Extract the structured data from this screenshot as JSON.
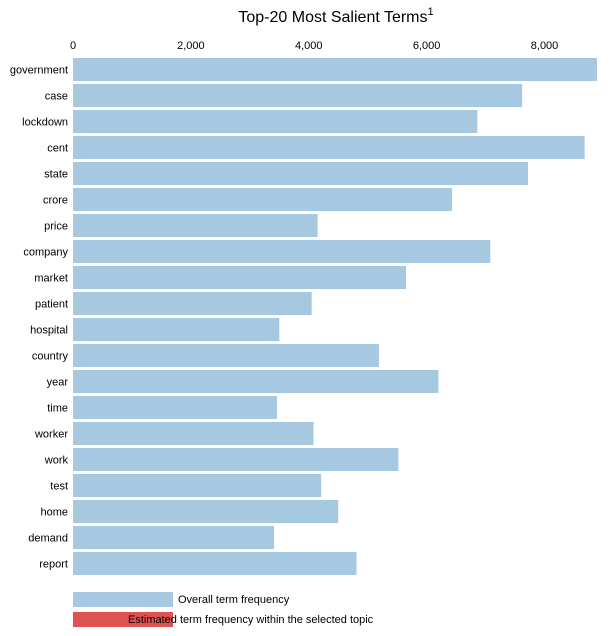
{
  "chart_data": {
    "type": "bar",
    "orientation": "horizontal",
    "title": "Top-20 Most Salient Terms",
    "title_superscript": "1",
    "categories": [
      "government",
      "case",
      "lockdown",
      "cent",
      "state",
      "crore",
      "price",
      "company",
      "market",
      "patient",
      "hospital",
      "country",
      "year",
      "time",
      "worker",
      "work",
      "test",
      "home",
      "demand",
      "report"
    ],
    "series": [
      {
        "name": "Overall term frequency",
        "color": "#a6c8e1",
        "values": [
          8890,
          7620,
          6860,
          8680,
          7720,
          6430,
          4150,
          7080,
          5650,
          4050,
          3500,
          5190,
          6200,
          3460,
          4080,
          5520,
          4210,
          4500,
          3410,
          4810
        ]
      },
      {
        "name": "Estimated term frequency within the selected topic",
        "color": "#e05252",
        "values": [
          0,
          0,
          0,
          0,
          0,
          0,
          0,
          0,
          0,
          0,
          0,
          0,
          0,
          0,
          0,
          0,
          0,
          0,
          0,
          0
        ]
      }
    ],
    "xlim": [
      0,
      8890
    ],
    "x_ticks": [
      0,
      2000,
      4000,
      6000,
      8000
    ],
    "x_tick_labels": [
      "0",
      "2,000",
      "4,000",
      "6,000",
      "8,000"
    ],
    "axis_position": "top",
    "grid": false,
    "legend_position": "bottom-left"
  }
}
